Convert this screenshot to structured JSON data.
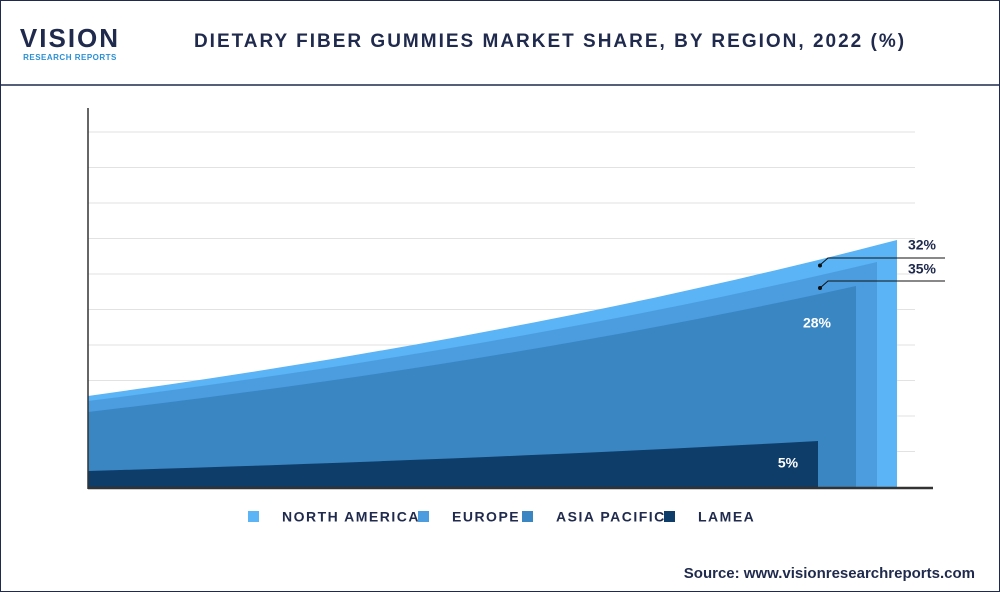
{
  "logo": {
    "name": "VISION",
    "tagline": "RESEARCH REPORTS"
  },
  "chart_data": {
    "type": "share-area",
    "title": "DIETARY FIBER GUMMIES MARKET SHARE, BY REGION, 2022 (%)",
    "series": [
      {
        "name": "NORTH AMERICA",
        "color": "#5ab4f5",
        "values": [
          32
        ],
        "value_labels": [
          "32%"
        ]
      },
      {
        "name": "EUROPE",
        "color": "#4b9de0",
        "values": [
          35
        ],
        "value_labels": [
          "35%"
        ]
      },
      {
        "name": "ASIA PACIFIC",
        "color": "#3a86c3",
        "values": [
          28
        ],
        "value_labels": [
          "28%"
        ]
      },
      {
        "name": "LAMEA",
        "color": "#0e3d6a",
        "values": [
          5
        ],
        "value_labels": [
          "5%"
        ]
      }
    ]
  },
  "source": "Source: www.visionresearchreports.com"
}
